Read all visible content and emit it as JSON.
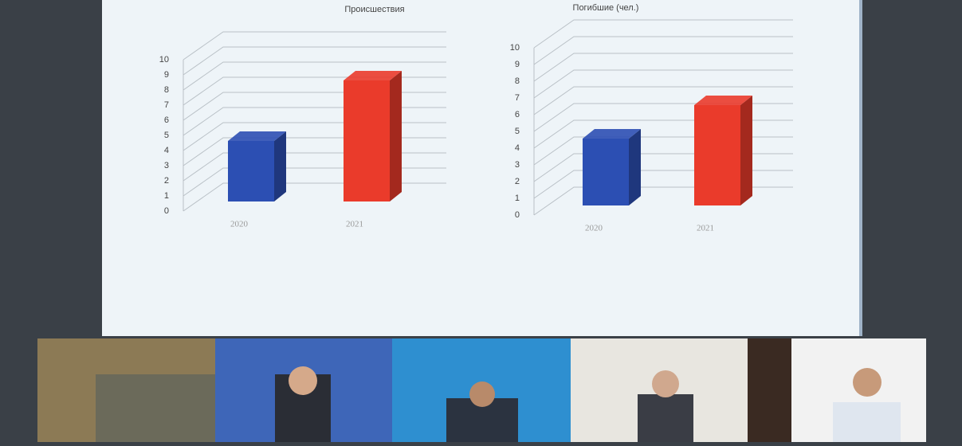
{
  "chart_data": [
    {
      "type": "bar3d",
      "title": "Происшествия",
      "categories": [
        "2020",
        "2021"
      ],
      "values": [
        4,
        8
      ],
      "colors": [
        "#2c4fb3",
        "#ea3b2b"
      ],
      "ylim": [
        0,
        10
      ],
      "yticks": [
        0,
        1,
        2,
        3,
        4,
        5,
        6,
        7,
        8,
        9,
        10
      ],
      "grid": true
    },
    {
      "type": "bar3d",
      "title": "Погибшие (чел.)",
      "categories": [
        "2020",
        "2021"
      ],
      "values": [
        4,
        6
      ],
      "colors": [
        "#2c4fb3",
        "#ea3b2b"
      ],
      "ylim": [
        0,
        10
      ],
      "yticks": [
        0,
        1,
        2,
        3,
        4,
        5,
        6,
        7,
        8,
        9,
        10
      ],
      "grid": true
    }
  ]
}
